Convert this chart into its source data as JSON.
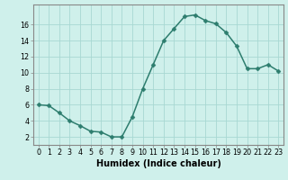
{
  "x": [
    0,
    1,
    2,
    3,
    4,
    5,
    6,
    7,
    8,
    9,
    10,
    11,
    12,
    13,
    14,
    15,
    16,
    17,
    18,
    19,
    20,
    21,
    22,
    23
  ],
  "y": [
    6.0,
    5.9,
    5.0,
    4.0,
    3.4,
    2.7,
    2.6,
    2.0,
    2.0,
    4.5,
    8.0,
    11.0,
    14.0,
    15.5,
    17.0,
    17.2,
    16.5,
    16.1,
    15.0,
    13.3,
    10.5,
    10.5,
    11.0,
    10.2
  ],
  "line_color": "#2d7d6e",
  "marker_color": "#2d7d6e",
  "bg_color": "#cff0eb",
  "grid_color": "#a8d8d2",
  "xlabel": "Humidex (Indice chaleur)",
  "ylabel": "",
  "xlim": [
    -0.5,
    23.5
  ],
  "ylim": [
    1.0,
    18.5
  ],
  "yticks": [
    2,
    4,
    6,
    8,
    10,
    12,
    14,
    16
  ],
  "xticks": [
    0,
    1,
    2,
    3,
    4,
    5,
    6,
    7,
    8,
    9,
    10,
    11,
    12,
    13,
    14,
    15,
    16,
    17,
    18,
    19,
    20,
    21,
    22,
    23
  ],
  "tick_label_fontsize": 5.8,
  "xlabel_fontsize": 7.0,
  "line_width": 1.1,
  "marker_size": 2.5
}
